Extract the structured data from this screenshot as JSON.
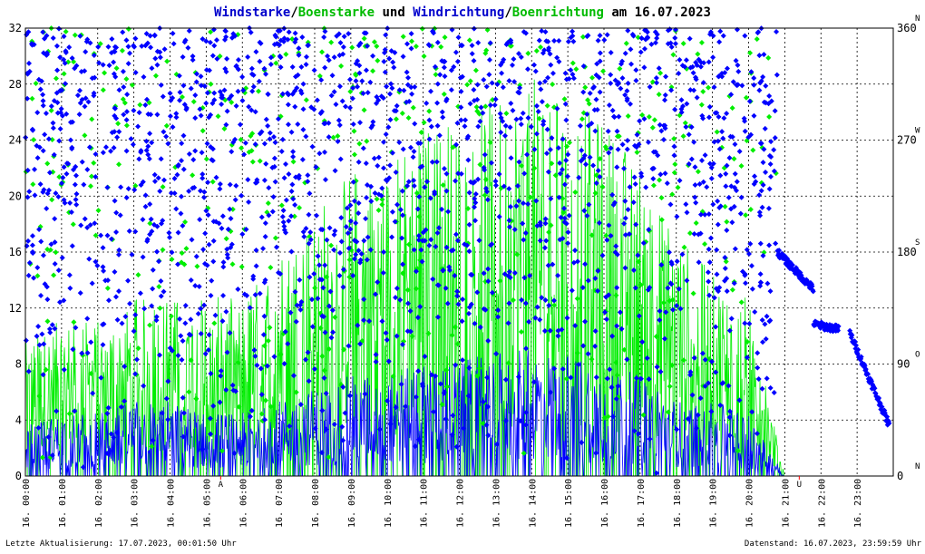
{
  "title": {
    "part1": "Windstarke",
    "slash1": "/",
    "part2": "Boenstarke",
    "part3": " und ",
    "part4": "Windrichtung",
    "slash2": "/",
    "part5": "Boenrichtung",
    "part6": " am 16.07.2023"
  },
  "footer": {
    "left": "Letzte Aktualisierung: 17.07.2023, 00:01:50 Uhr",
    "right": "Datenstand: 16.07.2023, 23:59:59 Uhr"
  },
  "colors": {
    "wind": "#0000ff",
    "gust": "#00ee00",
    "grid": "#000000",
    "marker": "#ff0000",
    "title_black": "#000000"
  },
  "chart_data": {
    "type": "line",
    "x_ticks": [
      "16. 00:00",
      "16. 01:00",
      "16. 02:00",
      "16. 03:00",
      "16. 04:00",
      "16. 05:00",
      "16. 06:00",
      "16. 07:00",
      "16. 08:00",
      "16. 09:00",
      "16. 10:00",
      "16. 11:00",
      "16. 12:00",
      "16. 13:00",
      "16. 14:00",
      "16. 15:00",
      "16. 16:00",
      "16. 17:00",
      "16. 18:00",
      "16. 19:00",
      "16. 20:00",
      "16. 21:00",
      "16. 22:00",
      "16. 23:00"
    ],
    "y_left_ticks": [
      "0",
      "4",
      "8",
      "12",
      "16",
      "20",
      "24",
      "28",
      "32"
    ],
    "y_left_range": [
      0,
      32
    ],
    "y_right_ticks": [
      {
        "value": 0,
        "label": "0",
        "dir": "N"
      },
      {
        "value": 90,
        "label": "90",
        "dir": "O"
      },
      {
        "value": 180,
        "label": "180",
        "dir": "S"
      },
      {
        "value": 270,
        "label": "270",
        "dir": "W"
      },
      {
        "value": 360,
        "label": "360",
        "dir": "N"
      }
    ],
    "y_right_range": [
      0,
      360
    ],
    "x_markers": [
      {
        "hour": 5.4,
        "label": "A"
      },
      {
        "hour": 21.4,
        "label": "U"
      }
    ],
    "grid": true,
    "series": [
      {
        "name": "Windstarke",
        "kind": "line",
        "axis": "left",
        "hourly": [
          2.0,
          2.5,
          2.5,
          3.0,
          3.0,
          2.5,
          2.5,
          3.0,
          3.5,
          4.0,
          4.0,
          4.5,
          4.5,
          5.0,
          5.0,
          5.0,
          4.5,
          4.0,
          3.0,
          3.0,
          2.5,
          0,
          0,
          0
        ]
      },
      {
        "name": "Boenstarke",
        "kind": "line",
        "axis": "left",
        "hourly": [
          6,
          7,
          7,
          8,
          8,
          8,
          8,
          10,
          12,
          14,
          14,
          16,
          16,
          17,
          18,
          17,
          16,
          14,
          11,
          9,
          8,
          0,
          0,
          0
        ]
      },
      {
        "name": "Windrichtung",
        "kind": "scatter",
        "axis": "right",
        "segments": [
          {
            "from_hour": 0,
            "to_hour": 20.8,
            "pattern": "scattered",
            "min_deg": 0,
            "max_deg": 360
          },
          {
            "from_hour": 20.8,
            "to_hour": 21.8,
            "pattern": "trend",
            "start_deg": 180,
            "end_deg": 150
          },
          {
            "from_hour": 21.8,
            "to_hour": 22.5,
            "pattern": "trend",
            "start_deg": 122,
            "end_deg": 118
          },
          {
            "from_hour": 22.8,
            "to_hour": 23.9,
            "pattern": "trend",
            "start_deg": 115,
            "end_deg": 40
          }
        ]
      },
      {
        "name": "Boenrichtung",
        "kind": "scatter",
        "axis": "right",
        "segments": [
          {
            "from_hour": 0,
            "to_hour": 20.8,
            "pattern": "scattered",
            "min_deg": 0,
            "max_deg": 360
          }
        ]
      }
    ]
  }
}
